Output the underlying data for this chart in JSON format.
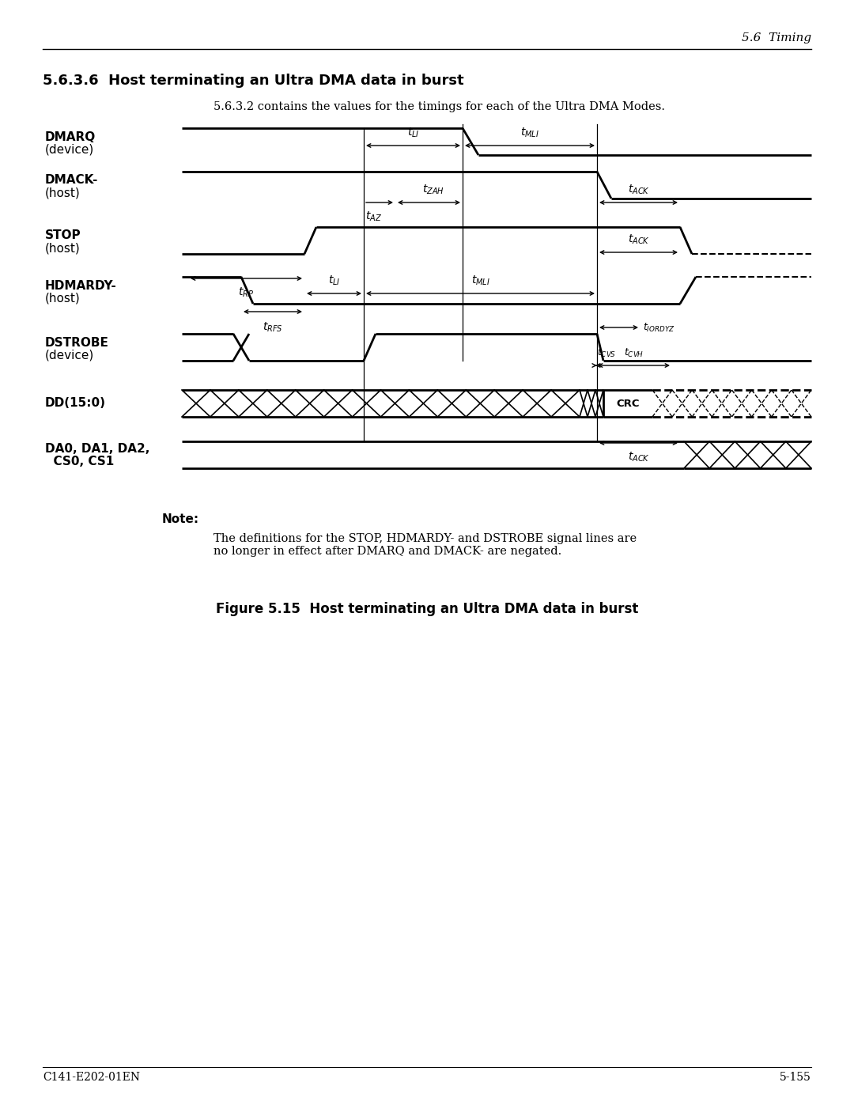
{
  "header_right": "5.6  Timing",
  "section_heading": "5.6.3.6  Host terminating an Ultra DMA data in burst",
  "subtitle": "5.6.3.2 contains the values for the timings for each of the Ultra DMA Modes.",
  "note_bold": "Note:",
  "note_text": "The definitions for the STOP, HDMARDY- and DSTROBE signal lines are\nno longer in effect after DMARQ and DMACK- are negated.",
  "figure_caption": "Figure 5.15  Host terminating an Ultra DMA data in burst",
  "footer_left": "C141-E202-01EN",
  "footer_right": "5-155",
  "bg_color": "#ffffff"
}
